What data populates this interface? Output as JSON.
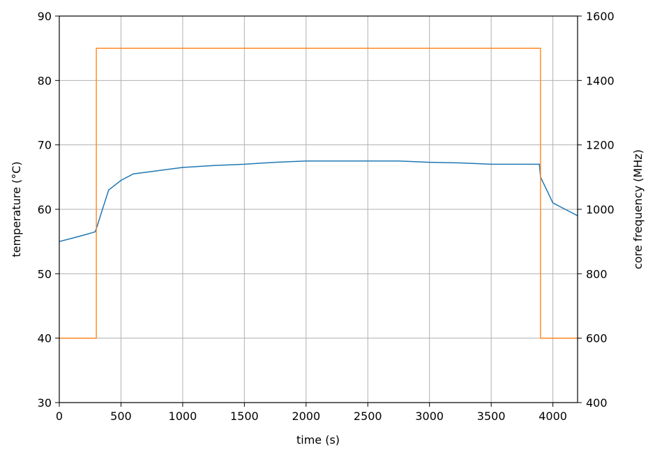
{
  "chart_data": {
    "type": "line",
    "title": "",
    "xlabel": "time (s)",
    "ylabel_left": "temperature (°C)",
    "ylabel_right": "core frequency (MHz)",
    "xlim": [
      0,
      4200
    ],
    "ylim_left": [
      30,
      90
    ],
    "ylim_right": [
      400,
      1600
    ],
    "xticks": [
      0,
      500,
      1000,
      1500,
      2000,
      2500,
      3000,
      3500,
      4000
    ],
    "yticks_left": [
      30,
      40,
      50,
      60,
      70,
      80,
      90
    ],
    "yticks_right": [
      400,
      600,
      800,
      1000,
      1200,
      1400,
      1600
    ],
    "grid": true,
    "legend": "none",
    "series": [
      {
        "axis": "left",
        "color": "#1f77b4",
        "x": [
          0,
          100,
          200,
          290,
          300,
          350,
          400,
          500,
          600,
          800,
          1000,
          1250,
          1500,
          1750,
          2000,
          2250,
          2500,
          2750,
          3000,
          3250,
          3500,
          3750,
          3890,
          3900,
          3950,
          4000,
          4100,
          4200
        ],
        "y": [
          55,
          55.5,
          56,
          56.5,
          57,
          60,
          63,
          64.5,
          65.5,
          66,
          66.5,
          66.8,
          67,
          67.3,
          67.5,
          67.5,
          67.5,
          67.5,
          67.3,
          67.2,
          67,
          67,
          67,
          65,
          63,
          61,
          60,
          59
        ]
      },
      {
        "axis": "right",
        "color": "#ff7f0e",
        "x": [
          0,
          300,
          300,
          3900,
          3900,
          4200
        ],
        "y": [
          600,
          600,
          1500,
          1500,
          600,
          600
        ]
      }
    ]
  }
}
